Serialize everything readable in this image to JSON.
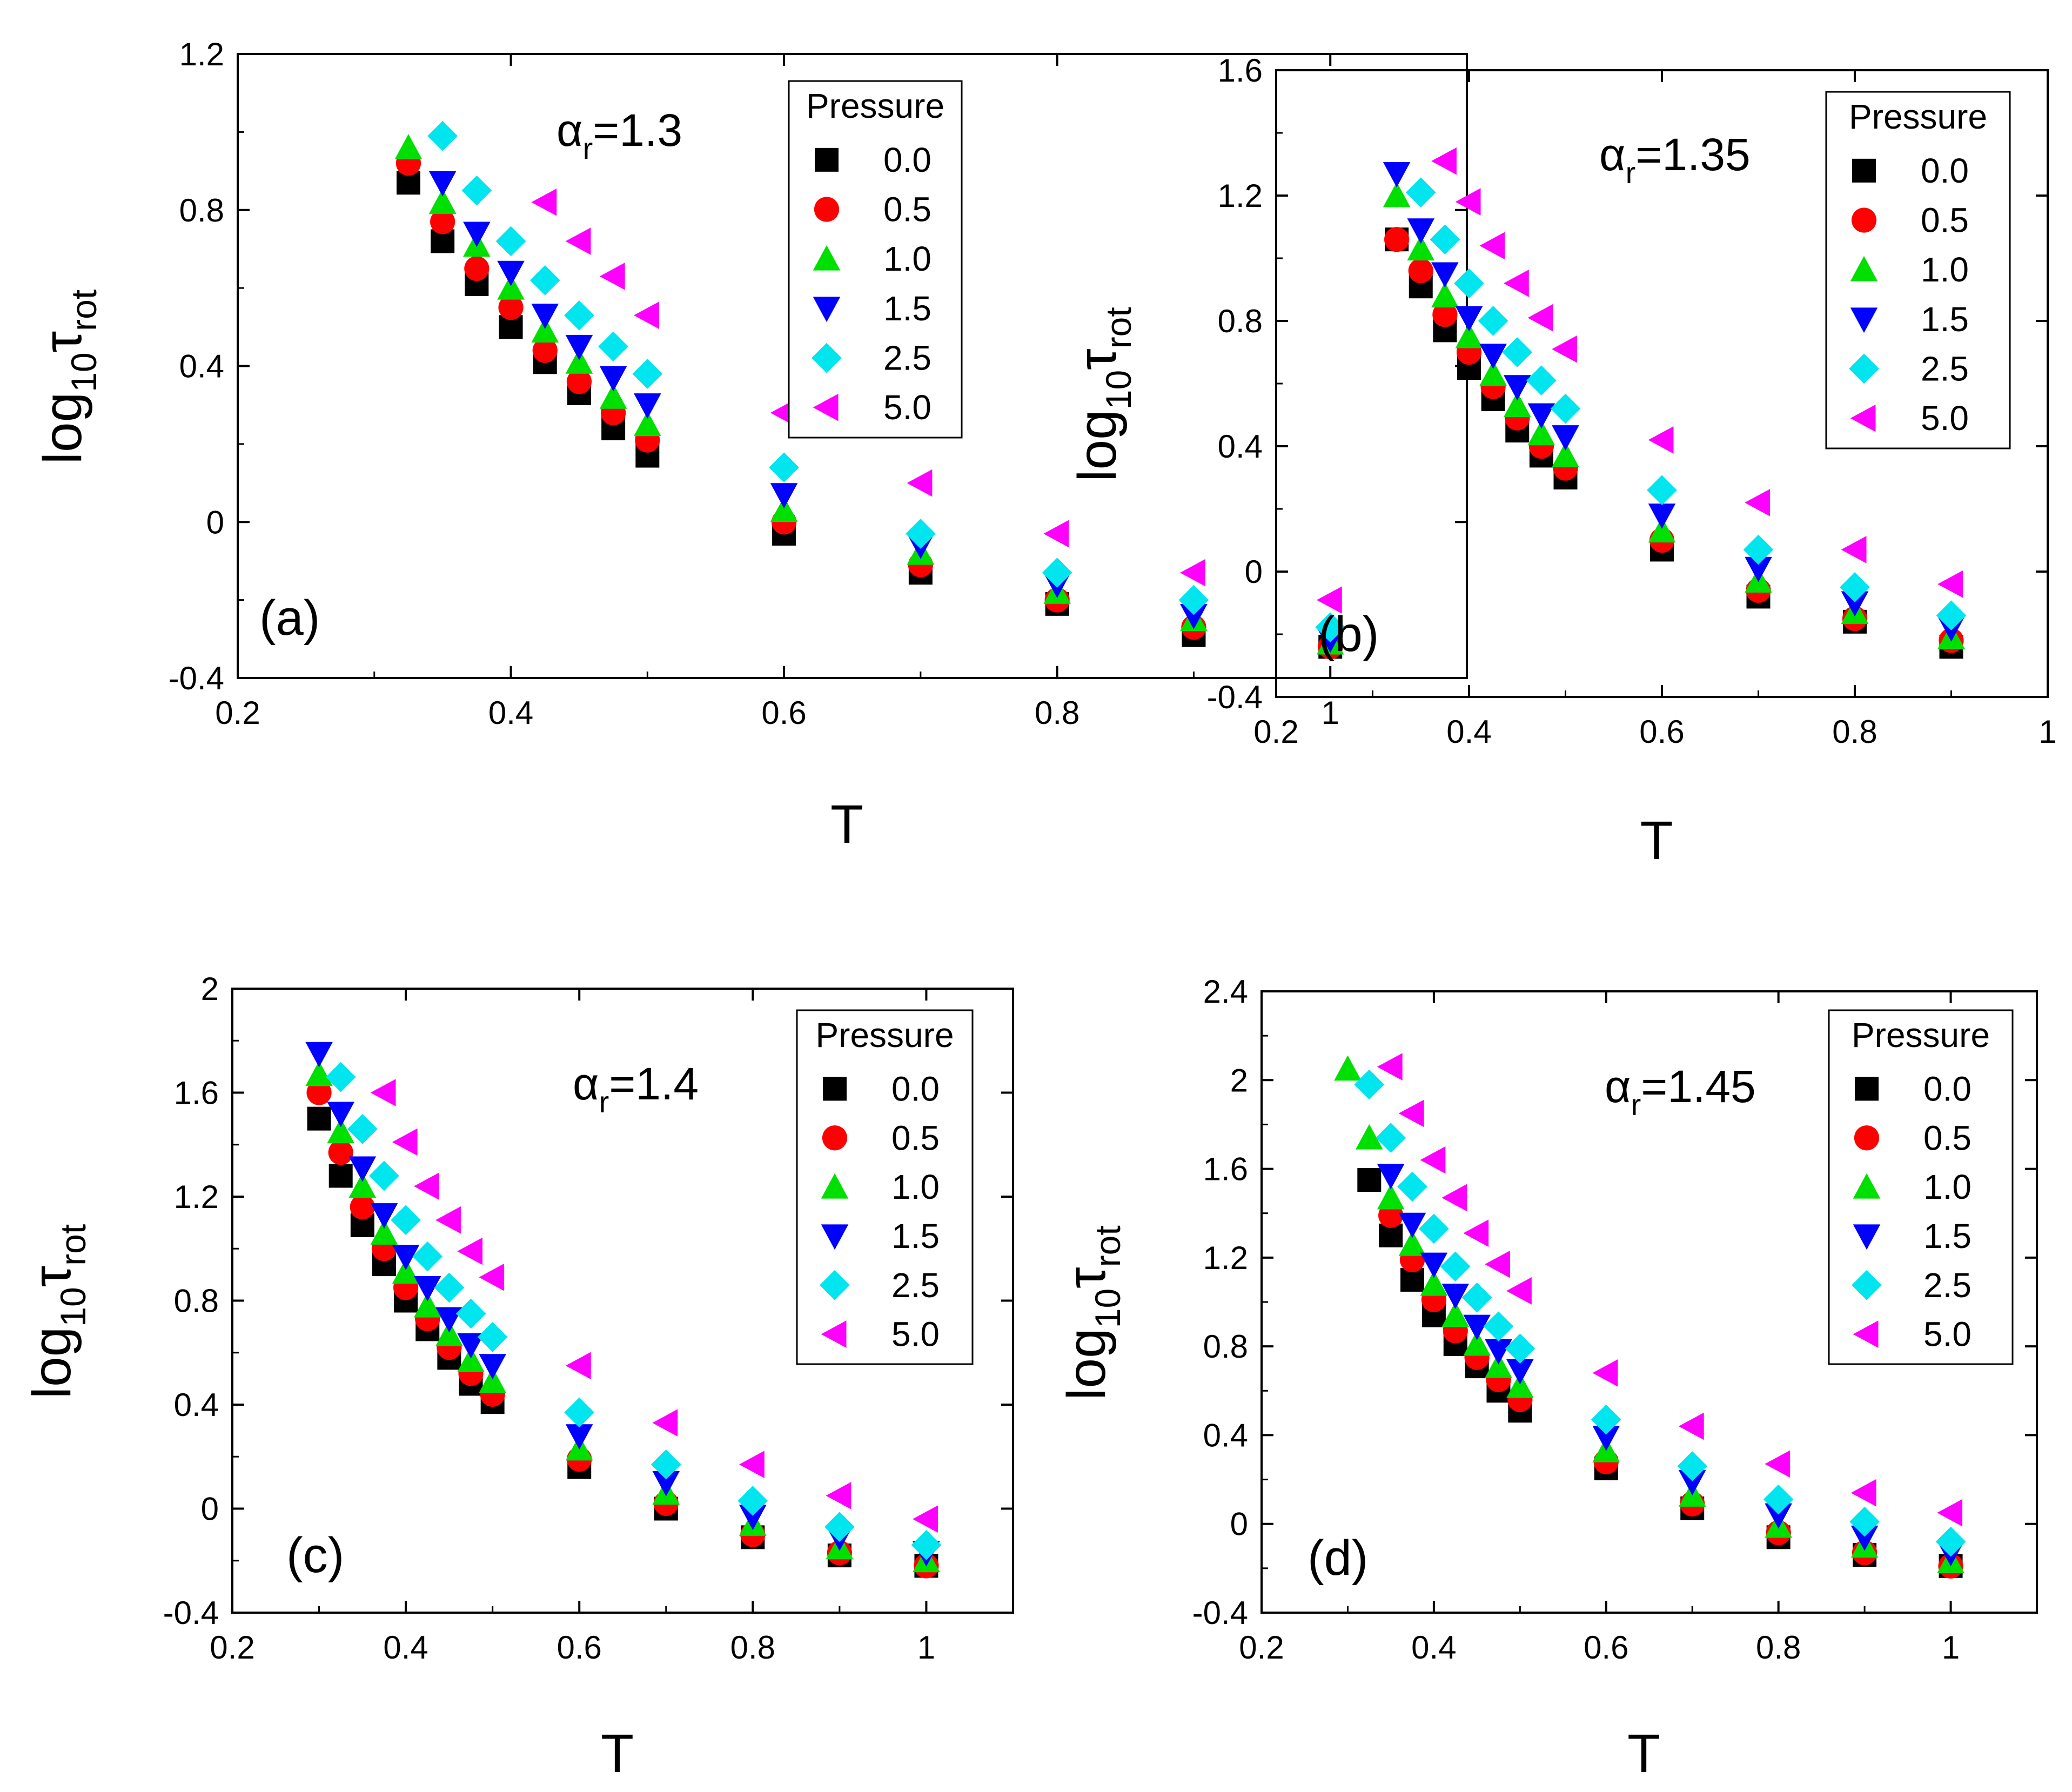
{
  "colors": {
    "p0": "#000000",
    "p05": "#ff0000",
    "p10": "#00e000",
    "p15": "#0000ff",
    "p25": "#00e5ee",
    "p50": "#ff00ff"
  },
  "chart_data": [
    {
      "type": "scatter",
      "tag": "(a)",
      "alpha_symbol": "α",
      "alpha_sub": "r",
      "alpha_value": "=1.3",
      "xlabel": "T",
      "ylabel_main": "log",
      "ylabel_sub1": "10",
      "ylabel_tau": "τ",
      "ylabel_sub2": "rot",
      "xlim": [
        0.2,
        1.1
      ],
      "ylim": [
        -0.4,
        1.2
      ],
      "xticks": [
        0.2,
        0.4,
        0.6,
        0.8,
        1.0
      ],
      "xtick_labels": [
        "0.2",
        "0.4",
        "0.6",
        "0.8",
        "1"
      ],
      "yticks": [
        -0.4,
        0,
        0.4,
        0.8,
        1.2
      ],
      "ytick_labels": [
        "-0.4",
        "0",
        "0.4",
        "0.8",
        "1.2"
      ],
      "legend_title": "Pressure",
      "series": [
        {
          "name": "0.0",
          "marker": "square",
          "color": "#000000",
          "x": [
            0.325,
            0.35,
            0.375,
            0.4,
            0.425,
            0.45,
            0.475,
            0.5,
            0.6,
            0.7,
            0.8,
            0.9,
            1.0
          ],
          "y": [
            0.87,
            0.72,
            0.61,
            0.5,
            0.41,
            0.33,
            0.24,
            0.17,
            -0.03,
            -0.13,
            -0.21,
            -0.29,
            -0.32
          ]
        },
        {
          "name": "0.5",
          "marker": "circle",
          "color": "#ff0000",
          "x": [
            0.325,
            0.35,
            0.375,
            0.4,
            0.425,
            0.45,
            0.475,
            0.5,
            0.6,
            0.7,
            0.8,
            0.9,
            1.0
          ],
          "y": [
            0.92,
            0.77,
            0.65,
            0.55,
            0.44,
            0.36,
            0.28,
            0.21,
            0.0,
            -0.11,
            -0.2,
            -0.27,
            -0.32
          ]
        },
        {
          "name": "1.0",
          "marker": "triangle-up",
          "color": "#00e000",
          "x": [
            0.325,
            0.35,
            0.375,
            0.4,
            0.425,
            0.45,
            0.475,
            0.5,
            0.6,
            0.7,
            0.8,
            0.9,
            1.0
          ],
          "y": [
            0.96,
            0.82,
            0.71,
            0.6,
            0.49,
            0.41,
            0.32,
            0.25,
            0.03,
            -0.08,
            -0.18,
            -0.25,
            -0.31
          ]
        },
        {
          "name": "1.5",
          "marker": "triangle-down",
          "color": "#0000ff",
          "x": [
            0.35,
            0.375,
            0.4,
            0.425,
            0.45,
            0.475,
            0.5,
            0.6,
            0.7,
            0.8,
            0.9,
            1.0
          ],
          "y": [
            0.87,
            0.74,
            0.64,
            0.53,
            0.45,
            0.37,
            0.3,
            0.07,
            -0.06,
            -0.16,
            -0.24,
            -0.3
          ]
        },
        {
          "name": "2.5",
          "marker": "diamond",
          "color": "#00e5ee",
          "x": [
            0.35,
            0.375,
            0.4,
            0.425,
            0.45,
            0.475,
            0.5,
            0.6,
            0.7,
            0.8,
            0.9,
            1.0
          ],
          "y": [
            0.99,
            0.85,
            0.72,
            0.62,
            0.53,
            0.45,
            0.38,
            0.14,
            -0.03,
            -0.13,
            -0.2,
            -0.27
          ]
        },
        {
          "name": "5.0",
          "marker": "triangle-left",
          "color": "#ff00ff",
          "x": [
            0.425,
            0.45,
            0.475,
            0.5,
            0.6,
            0.7,
            0.8,
            0.9,
            1.0
          ],
          "y": [
            0.82,
            0.72,
            0.63,
            0.53,
            0.28,
            0.1,
            -0.03,
            -0.13,
            -0.2
          ]
        }
      ]
    },
    {
      "type": "scatter",
      "tag": "(b)",
      "alpha_symbol": "α",
      "alpha_sub": "r",
      "alpha_value": "=1.35",
      "xlabel": "T",
      "ylabel_main": "log",
      "ylabel_sub1": "10",
      "ylabel_tau": "τ",
      "ylabel_sub2": "rot",
      "xlim": [
        0.2,
        1.0
      ],
      "ylim": [
        -0.4,
        1.6
      ],
      "xticks": [
        0.2,
        0.4,
        0.6,
        0.8,
        1.0
      ],
      "xtick_labels": [
        "0.2",
        "0.4",
        "0.6",
        "0.8",
        "1"
      ],
      "yticks": [
        -0.4,
        0,
        0.4,
        0.8,
        1.2,
        1.6
      ],
      "ytick_labels": [
        "-0.4",
        "0",
        "0.4",
        "0.8",
        "1.2",
        "1.6"
      ],
      "legend_title": "Pressure",
      "series": [
        {
          "name": "0.0",
          "marker": "square",
          "color": "#000000",
          "x": [
            0.325,
            0.35,
            0.375,
            0.4,
            0.425,
            0.45,
            0.475,
            0.5,
            0.6,
            0.7,
            0.8,
            0.9
          ],
          "y": [
            1.06,
            0.91,
            0.77,
            0.65,
            0.55,
            0.45,
            0.37,
            0.3,
            0.07,
            -0.08,
            -0.16,
            -0.24
          ]
        },
        {
          "name": "0.5",
          "marker": "circle",
          "color": "#ff0000",
          "x": [
            0.325,
            0.35,
            0.375,
            0.4,
            0.425,
            0.45,
            0.475,
            0.5,
            0.6,
            0.7,
            0.8,
            0.9
          ],
          "y": [
            1.06,
            0.96,
            0.82,
            0.7,
            0.59,
            0.49,
            0.4,
            0.33,
            0.1,
            -0.06,
            -0.15,
            -0.22
          ]
        },
        {
          "name": "1.0",
          "marker": "triangle-up",
          "color": "#00e000",
          "x": [
            0.325,
            0.35,
            0.375,
            0.4,
            0.425,
            0.45,
            0.475,
            0.5,
            0.6,
            0.7,
            0.8,
            0.9
          ],
          "y": [
            1.2,
            1.03,
            0.88,
            0.75,
            0.63,
            0.53,
            0.44,
            0.37,
            0.13,
            -0.03,
            -0.13,
            -0.21
          ]
        },
        {
          "name": "1.5",
          "marker": "triangle-down",
          "color": "#0000ff",
          "x": [
            0.325,
            0.35,
            0.375,
            0.4,
            0.425,
            0.45,
            0.475,
            0.5,
            0.6,
            0.7,
            0.8,
            0.9
          ],
          "y": [
            1.27,
            1.09,
            0.95,
            0.81,
            0.69,
            0.59,
            0.5,
            0.43,
            0.18,
            0.01,
            -0.1,
            -0.18
          ]
        },
        {
          "name": "2.5",
          "marker": "diamond",
          "color": "#00e5ee",
          "x": [
            0.35,
            0.375,
            0.4,
            0.425,
            0.45,
            0.475,
            0.5,
            0.6,
            0.7,
            0.8,
            0.9
          ],
          "y": [
            1.21,
            1.06,
            0.92,
            0.8,
            0.7,
            0.61,
            0.52,
            0.26,
            0.07,
            -0.05,
            -0.14
          ]
        },
        {
          "name": "5.0",
          "marker": "triangle-left",
          "color": "#ff00ff",
          "x": [
            0.375,
            0.4,
            0.425,
            0.45,
            0.475,
            0.5,
            0.6,
            0.7,
            0.8,
            0.9
          ],
          "y": [
            1.31,
            1.18,
            1.04,
            0.92,
            0.81,
            0.71,
            0.42,
            0.22,
            0.07,
            -0.04
          ]
        }
      ]
    },
    {
      "type": "scatter",
      "tag": "(c)",
      "alpha_symbol": "α",
      "alpha_sub": "r",
      "alpha_value": "=1.4",
      "xlabel": "T",
      "ylabel_main": "log",
      "ylabel_sub1": "10",
      "ylabel_tau": "τ",
      "ylabel_sub2": "rot",
      "xlim": [
        0.2,
        1.1
      ],
      "ylim": [
        -0.4,
        2.0
      ],
      "xticks": [
        0.2,
        0.4,
        0.6,
        0.8,
        1.0
      ],
      "xtick_labels": [
        "0.2",
        "0.4",
        "0.6",
        "0.8",
        "1"
      ],
      "yticks": [
        -0.4,
        0,
        0.4,
        0.8,
        1.2,
        1.6,
        2.0
      ],
      "ytick_labels": [
        "-0.4",
        "0",
        "0.4",
        "0.8",
        "1.2",
        "1.6",
        "2"
      ],
      "legend_title": "Pressure",
      "series": [
        {
          "name": "0.0",
          "marker": "square",
          "color": "#000000",
          "x": [
            0.3,
            0.325,
            0.35,
            0.375,
            0.4,
            0.425,
            0.45,
            0.475,
            0.5,
            0.6,
            0.7,
            0.8,
            0.9,
            1.0
          ],
          "y": [
            1.5,
            1.28,
            1.09,
            0.94,
            0.8,
            0.69,
            0.58,
            0.48,
            0.41,
            0.16,
            0.0,
            -0.11,
            -0.18,
            -0.22
          ]
        },
        {
          "name": "0.5",
          "marker": "circle",
          "color": "#ff0000",
          "x": [
            0.3,
            0.325,
            0.35,
            0.375,
            0.4,
            0.425,
            0.45,
            0.475,
            0.5,
            0.6,
            0.7,
            0.8,
            0.9,
            1.0
          ],
          "y": [
            1.6,
            1.37,
            1.16,
            1.0,
            0.85,
            0.73,
            0.62,
            0.52,
            0.44,
            0.19,
            0.02,
            -0.1,
            -0.17,
            -0.22
          ]
        },
        {
          "name": "1.0",
          "marker": "triangle-up",
          "color": "#00e000",
          "x": [
            0.3,
            0.325,
            0.35,
            0.375,
            0.4,
            0.425,
            0.45,
            0.475,
            0.5,
            0.6,
            0.7,
            0.8,
            0.9,
            1.0
          ],
          "y": [
            1.67,
            1.45,
            1.24,
            1.06,
            0.91,
            0.78,
            0.67,
            0.57,
            0.49,
            0.23,
            0.06,
            -0.06,
            -0.15,
            -0.2
          ]
        },
        {
          "name": "1.5",
          "marker": "triangle-down",
          "color": "#0000ff",
          "x": [
            0.3,
            0.325,
            0.35,
            0.375,
            0.4,
            0.425,
            0.45,
            0.475,
            0.5,
            0.6,
            0.7,
            0.8,
            0.9,
            1.0
          ],
          "y": [
            1.75,
            1.52,
            1.31,
            1.13,
            0.97,
            0.85,
            0.73,
            0.63,
            0.55,
            0.28,
            0.1,
            -0.03,
            -0.11,
            -0.17
          ]
        },
        {
          "name": "2.5",
          "marker": "diamond",
          "color": "#00e5ee",
          "x": [
            0.325,
            0.35,
            0.375,
            0.4,
            0.425,
            0.45,
            0.475,
            0.5,
            0.6,
            0.7,
            0.8,
            0.9,
            1.0
          ],
          "y": [
            1.66,
            1.46,
            1.28,
            1.11,
            0.97,
            0.85,
            0.75,
            0.66,
            0.37,
            0.17,
            0.03,
            -0.07,
            -0.14
          ]
        },
        {
          "name": "5.0",
          "marker": "triangle-left",
          "color": "#ff00ff",
          "x": [
            0.375,
            0.4,
            0.425,
            0.45,
            0.475,
            0.5,
            0.6,
            0.7,
            0.8,
            0.9,
            1.0
          ],
          "y": [
            1.6,
            1.41,
            1.24,
            1.11,
            0.99,
            0.89,
            0.55,
            0.33,
            0.17,
            0.05,
            -0.04
          ]
        }
      ]
    },
    {
      "type": "scatter",
      "tag": "(d)",
      "alpha_symbol": "α",
      "alpha_sub": "r",
      "alpha_value": "=1.45",
      "xlabel": "T",
      "ylabel_main": "log",
      "ylabel_sub1": "10",
      "ylabel_tau": "τ",
      "ylabel_sub2": "rot",
      "xlim": [
        0.2,
        1.1
      ],
      "ylim": [
        -0.4,
        2.4
      ],
      "xticks": [
        0.2,
        0.4,
        0.6,
        0.8,
        1.0
      ],
      "xtick_labels": [
        "0.2",
        "0.4",
        "0.6",
        "0.8",
        "1"
      ],
      "yticks": [
        -0.4,
        0,
        0.4,
        0.8,
        1.2,
        1.6,
        2.0,
        2.4
      ],
      "ytick_labels": [
        "-0.4",
        "0",
        "0.4",
        "0.8",
        "1.2",
        "1.6",
        "2",
        "2.4"
      ],
      "legend_title": "Pressure",
      "series": [
        {
          "name": "0.0",
          "marker": "square",
          "color": "#000000",
          "x": [
            0.325,
            0.35,
            0.375,
            0.4,
            0.425,
            0.45,
            0.475,
            0.5,
            0.6,
            0.7,
            0.8,
            0.9,
            1.0
          ],
          "y": [
            1.55,
            1.3,
            1.1,
            0.94,
            0.81,
            0.71,
            0.6,
            0.51,
            0.25,
            0.07,
            -0.06,
            -0.14,
            -0.19
          ]
        },
        {
          "name": "0.5",
          "marker": "circle",
          "color": "#ff0000",
          "x": [
            0.35,
            0.375,
            0.4,
            0.425,
            0.45,
            0.475,
            0.5,
            0.6,
            0.7,
            0.8,
            0.9,
            1.0
          ],
          "y": [
            1.39,
            1.19,
            1.01,
            0.87,
            0.75,
            0.65,
            0.56,
            0.28,
            0.09,
            -0.04,
            -0.13,
            -0.19
          ]
        },
        {
          "name": "1.0",
          "marker": "triangle-up",
          "color": "#00e000",
          "x": [
            0.3,
            0.325,
            0.35,
            0.375,
            0.4,
            0.425,
            0.45,
            0.475,
            0.5,
            0.6,
            0.7,
            0.8,
            0.9,
            1.0
          ],
          "y": [
            2.05,
            1.74,
            1.47,
            1.26,
            1.08,
            0.94,
            0.81,
            0.71,
            0.62,
            0.33,
            0.13,
            -0.01,
            -0.1,
            -0.17
          ]
        },
        {
          "name": "1.5",
          "marker": "triangle-down",
          "color": "#0000ff",
          "x": [
            0.35,
            0.375,
            0.4,
            0.425,
            0.45,
            0.475,
            0.5,
            0.6,
            0.7,
            0.8,
            0.9,
            1.0
          ],
          "y": [
            1.57,
            1.35,
            1.17,
            1.03,
            0.89,
            0.78,
            0.69,
            0.39,
            0.19,
            0.04,
            -0.06,
            -0.13
          ]
        },
        {
          "name": "2.5",
          "marker": "diamond",
          "color": "#00e5ee",
          "x": [
            0.325,
            0.35,
            0.375,
            0.4,
            0.425,
            0.45,
            0.475,
            0.5,
            0.6,
            0.7,
            0.8,
            0.9,
            1.0
          ],
          "y": [
            1.98,
            1.74,
            1.52,
            1.33,
            1.16,
            1.02,
            0.89,
            0.79,
            0.47,
            0.26,
            0.11,
            0.01,
            -0.08
          ]
        },
        {
          "name": "5.0",
          "marker": "triangle-left",
          "color": "#ff00ff",
          "x": [
            0.35,
            0.375,
            0.4,
            0.425,
            0.45,
            0.475,
            0.5,
            0.6,
            0.7,
            0.8,
            0.9,
            1.0
          ],
          "y": [
            2.06,
            1.85,
            1.64,
            1.47,
            1.31,
            1.17,
            1.05,
            0.68,
            0.44,
            0.27,
            0.14,
            0.05
          ]
        }
      ]
    }
  ]
}
